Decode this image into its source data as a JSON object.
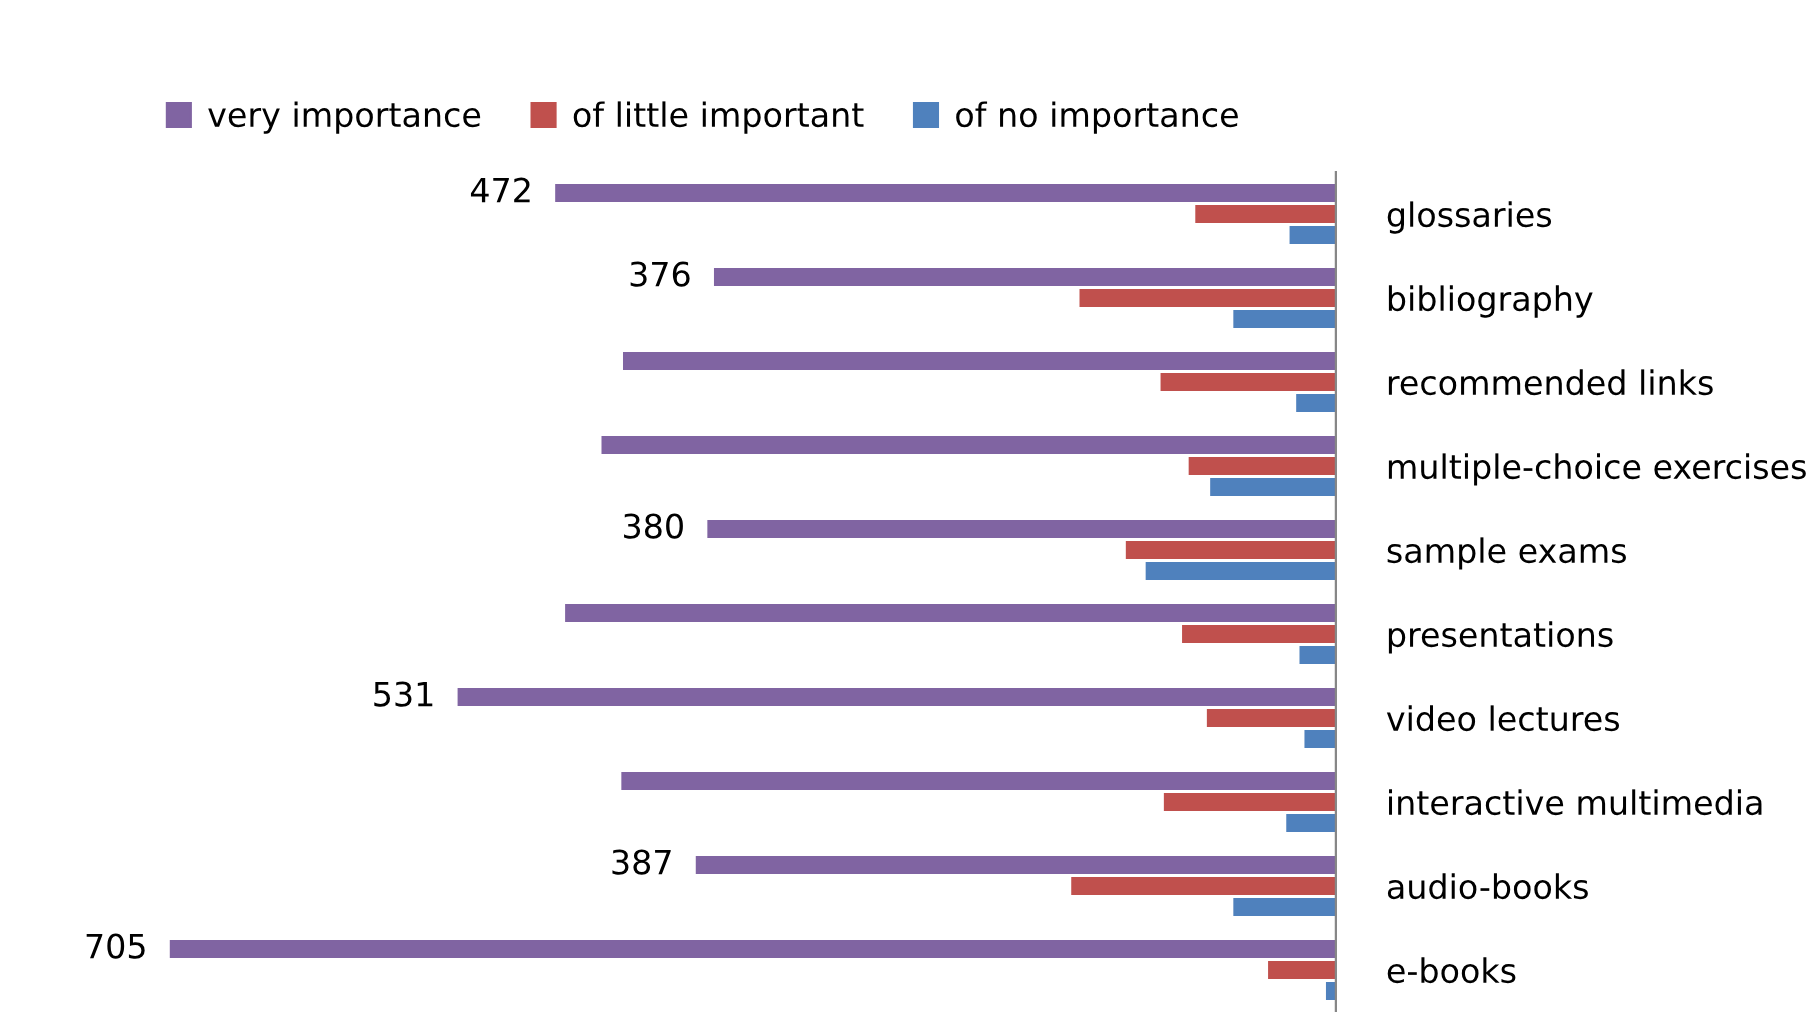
{
  "chart_data": {
    "type": "bar",
    "orientation": "horizontal",
    "categories": [
      "glossaries",
      "bibliography",
      "recommended links",
      "multiple-choice exercises",
      "sample exams",
      "presentations",
      "video lectures",
      "interactive multimedia",
      "audio-books",
      "e-books"
    ],
    "series": [
      {
        "name": "very importance",
        "color": "#8064a2",
        "values": [
          472,
          376,
          431,
          444,
          380,
          466,
          531,
          432,
          387,
          705
        ],
        "value_labels": [
          "472",
          "376",
          null,
          null,
          "380",
          null,
          "531",
          null,
          "387",
          "705"
        ]
      },
      {
        "name": "of little important",
        "color": "#c0504d",
        "values": [
          85,
          155,
          106,
          89,
          127,
          93,
          78,
          104,
          160,
          41
        ]
      },
      {
        "name": "of no importance",
        "color": "#4f81bd",
        "values": [
          28,
          62,
          24,
          76,
          115,
          22,
          19,
          30,
          62,
          6
        ]
      }
    ],
    "tick_labels": "y",
    "legend": "top",
    "grid": false
  }
}
